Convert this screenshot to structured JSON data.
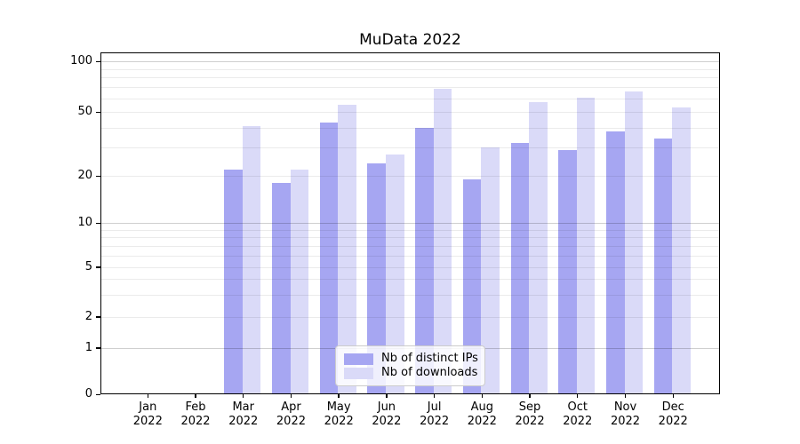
{
  "title": "MuData 2022",
  "chart_data": {
    "type": "bar",
    "title": "MuData 2022",
    "categories": [
      "Jan 2022",
      "Feb 2022",
      "Mar 2022",
      "Apr 2022",
      "May 2022",
      "Jun 2022",
      "Jul 2022",
      "Aug 2022",
      "Sep 2022",
      "Oct 2022",
      "Nov 2022",
      "Dec 2022"
    ],
    "series": [
      {
        "name": "Nb of distinct IPs",
        "color": "#a6a6f2",
        "values": [
          0,
          0,
          22,
          18,
          43,
          24,
          40,
          19,
          32,
          29,
          38,
          34
        ]
      },
      {
        "name": "Nb of downloads",
        "color": "#dadaf8",
        "values": [
          0,
          0,
          41,
          22,
          55,
          27,
          69,
          30,
          57,
          61,
          66,
          53
        ]
      }
    ],
    "yscale": "symlog",
    "yticks": [
      0,
      1,
      2,
      5,
      10,
      20,
      50,
      100
    ],
    "ylim": [
      0,
      109
    ],
    "grid": "both",
    "legend_position": "lower center"
  }
}
